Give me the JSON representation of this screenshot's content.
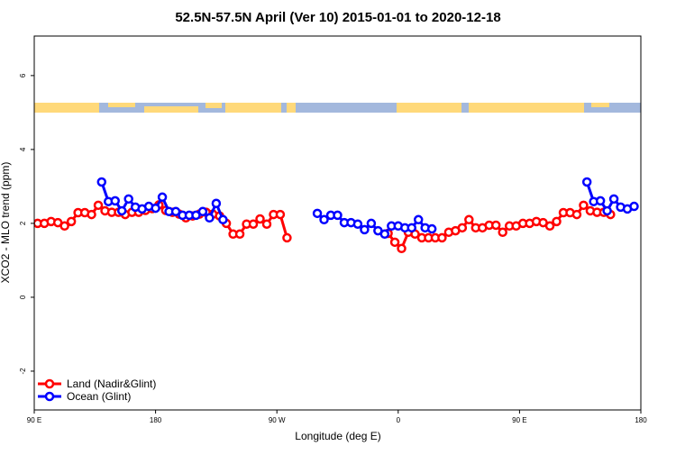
{
  "chart_data": {
    "type": "line",
    "title": "52.5N-57.5N April (Ver 10)   2015-01-01 to 2020-12-18",
    "x_label": "Longitude (deg E)",
    "y_label": "XCO2 - MLO trend (ppm)",
    "xlim": [
      90,
      540
    ],
    "xticks": [
      {
        "value": 90,
        "label": "90 E"
      },
      {
        "value": 180,
        "label": "180"
      },
      {
        "value": 270,
        "label": "90 W"
      },
      {
        "value": 360,
        "label": "0"
      },
      {
        "value": 450,
        "label": "90 E"
      },
      {
        "value": 540,
        "label": "180"
      }
    ],
    "ylim": [
      -3.05,
      7.07
    ],
    "yticks": [
      -2,
      0,
      2,
      4,
      6
    ],
    "legend": "bottom-left",
    "series": [
      {
        "name": "Land (Nadir&Glint)",
        "color": "#ff0000",
        "x": [
          92.5,
          97.5,
          102.5,
          107.5,
          112.5,
          117.5,
          122.5,
          127.5,
          132.5,
          137.5,
          142.5,
          147.5,
          152.5,
          157.5,
          162.5,
          167.5,
          172.5,
          177.5,
          182.5,
          187.5,
          192.5,
          197.5,
          202.5,
          207.5,
          212.5,
          217.5,
          222.5,
          227.5,
          232.5,
          237.5,
          242.5,
          247.5,
          252.5,
          257.5,
          262.5,
          267.5,
          272.5,
          277.5,
          null,
          352.5,
          357.5,
          362.5,
          367.5,
          372.5,
          377.5,
          382.5,
          387.5,
          392.5,
          397.5,
          402.5,
          407.5,
          412.5,
          417.5,
          422.5,
          427.5,
          432.5,
          437.5,
          442.5,
          447.5,
          452.5,
          457.5,
          462.5,
          467.5,
          472.5,
          477.5,
          482.5,
          487.5,
          492.5,
          497.5,
          502.5,
          507.5,
          512.5,
          517.5
        ],
        "values": [
          2.0,
          2.0,
          2.05,
          2.02,
          1.93,
          2.05,
          2.29,
          2.29,
          2.24,
          2.49,
          2.34,
          2.3,
          2.3,
          2.24,
          2.3,
          2.3,
          2.35,
          2.4,
          2.5,
          2.35,
          2.3,
          2.25,
          2.15,
          2.2,
          2.25,
          2.3,
          2.25,
          2.2,
          2.0,
          1.71,
          1.71,
          1.98,
          1.98,
          2.12,
          1.98,
          2.24,
          2.24,
          1.61,
          null,
          1.73,
          1.49,
          1.32,
          1.76,
          1.71,
          1.61,
          1.61,
          1.61,
          1.61,
          1.76,
          1.8,
          1.88,
          2.1,
          1.88,
          1.88,
          1.95,
          1.95,
          1.76,
          1.93,
          1.93,
          2.0,
          2.0,
          2.05,
          2.02,
          1.93,
          2.05,
          2.29,
          2.29,
          2.24,
          2.49,
          2.34,
          2.3,
          2.3,
          2.24
        ]
      },
      {
        "name": "Ocean (Glint)",
        "color": "#0000ff",
        "x": [
          140,
          145,
          150,
          155,
          160,
          165,
          170,
          175,
          180,
          185,
          190,
          195,
          200,
          205,
          210,
          215,
          220,
          225,
          230,
          null,
          300,
          305,
          310,
          315,
          320,
          325,
          330,
          335,
          340,
          345,
          350,
          355,
          360,
          365,
          370,
          375,
          380,
          385,
          null,
          500,
          505,
          510,
          515,
          520,
          525,
          530,
          535
        ],
        "values": [
          3.12,
          2.59,
          2.61,
          2.34,
          2.66,
          2.44,
          2.39,
          2.46,
          2.41,
          2.71,
          2.32,
          2.32,
          2.22,
          2.22,
          2.22,
          2.32,
          2.15,
          2.54,
          2.1,
          null,
          2.27,
          2.1,
          2.22,
          2.22,
          2.02,
          2.02,
          1.98,
          1.83,
          2.0,
          1.8,
          1.71,
          1.93,
          1.93,
          1.88,
          1.88,
          2.1,
          1.88,
          1.85,
          null,
          3.12,
          2.59,
          2.61,
          2.34,
          2.66,
          2.44,
          2.39,
          2.46
        ]
      }
    ]
  }
}
